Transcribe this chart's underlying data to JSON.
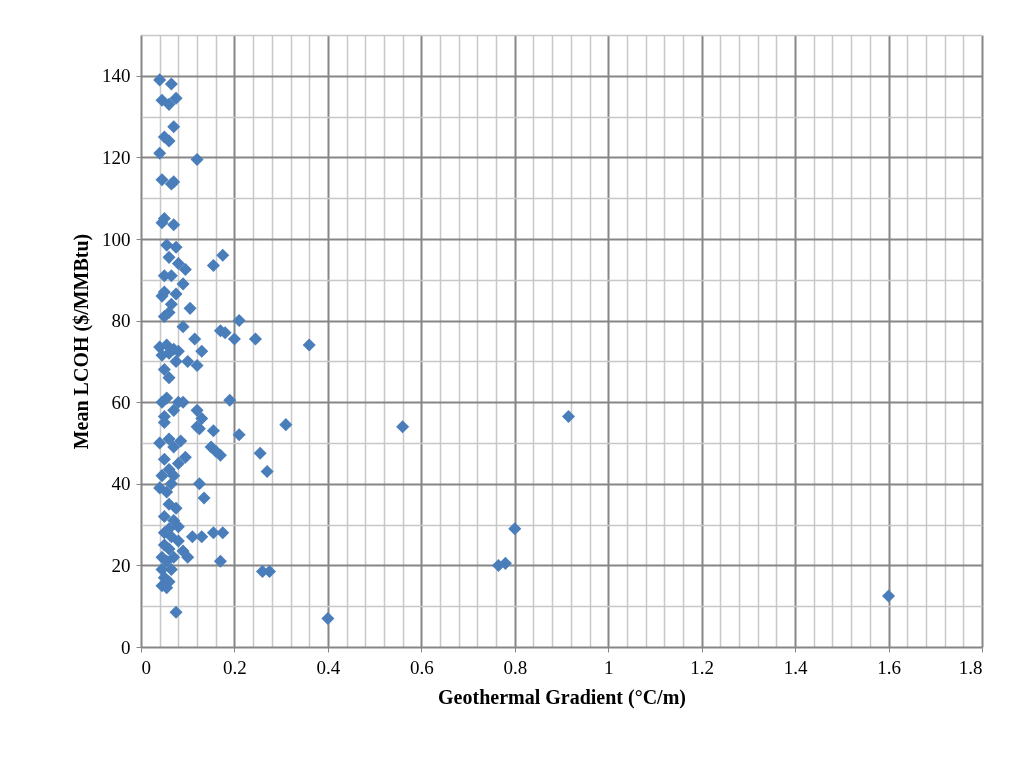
{
  "chart_data": {
    "type": "scatter",
    "xlabel": "Geothermal Gradient (°C/m)",
    "ylabel": "Mean LCOH ($/MMBtu)",
    "x": [
      0.04,
      0.065,
      0.045,
      0.075,
      0.06,
      0.07,
      0.05,
      0.06,
      0.04,
      0.12,
      0.045,
      0.07,
      0.065,
      0.045,
      0.05,
      0.07,
      0.055,
      0.075,
      0.06,
      0.08,
      0.095,
      0.05,
      0.065,
      0.155,
      0.175,
      0.09,
      0.05,
      0.045,
      0.075,
      0.065,
      0.105,
      0.05,
      0.06,
      0.21,
      0.09,
      0.17,
      0.18,
      0.2,
      0.245,
      0.36,
      0.04,
      0.055,
      0.07,
      0.115,
      0.045,
      0.06,
      0.08,
      0.13,
      0.1,
      0.12,
      0.05,
      0.075,
      0.06,
      0.055,
      0.045,
      0.08,
      0.09,
      0.19,
      0.07,
      0.05,
      0.12,
      0.13,
      0.12,
      0.125,
      0.155,
      0.31,
      0.56,
      0.915,
      0.05,
      0.21,
      0.06,
      0.085,
      0.04,
      0.07,
      0.15,
      0.16,
      0.17,
      0.255,
      0.095,
      0.05,
      0.08,
      0.06,
      0.27,
      0.045,
      0.07,
      0.125,
      0.04,
      0.055,
      0.065,
      0.135,
      0.06,
      0.075,
      0.05,
      0.07,
      0.06,
      0.08,
      0.8,
      0.05,
      0.11,
      0.13,
      0.155,
      0.175,
      0.065,
      0.05,
      0.08,
      0.06,
      0.09,
      0.045,
      0.07,
      0.1,
      0.055,
      0.17,
      0.045,
      0.065,
      0.765,
      0.78,
      0.26,
      0.275,
      0.05,
      0.06,
      0.045,
      0.055,
      1.6,
      0.075,
      0.4
    ],
    "values": [
      139,
      138,
      134,
      134.5,
      133,
      127.5,
      125,
      124,
      121,
      119.5,
      114.5,
      114,
      113.5,
      104,
      105,
      103.5,
      98.5,
      98,
      95.5,
      94,
      92.5,
      91,
      91,
      93.5,
      96,
      89,
      87,
      86,
      86.5,
      84,
      83,
      81,
      82,
      80,
      78.5,
      77.5,
      77,
      75.5,
      75.5,
      74,
      73.5,
      74,
      73,
      75.5,
      71.5,
      72,
      72.5,
      72.5,
      70,
      69,
      68,
      70,
      66,
      61,
      60,
      60,
      60,
      60.5,
      58,
      56.5,
      58,
      56,
      54,
      53.5,
      53,
      54.5,
      54,
      56.5,
      55,
      52,
      51,
      50.5,
      50,
      49,
      49,
      48,
      47,
      47.5,
      46.5,
      46,
      45,
      43.5,
      43,
      42,
      42,
      40,
      39,
      38,
      40,
      36.5,
      35,
      34,
      32,
      31,
      29,
      29.5,
      29,
      28,
      27,
      27,
      28,
      28,
      27,
      25,
      26,
      24,
      23.5,
      22,
      22,
      22,
      21,
      21,
      19,
      19,
      20,
      20.5,
      18.5,
      18.5,
      17,
      16,
      15,
      14.5,
      12.5,
      8.5,
      7
    ],
    "color": "#4a7ebb",
    "marker": "diamond",
    "grid": true,
    "xlim": [
      0,
      1.8
    ],
    "xticks": [
      0,
      {
        "value": 0.04,
        "label": null
      },
      {
        "value": 0.08,
        "label": null
      },
      {
        "value": 0.12,
        "label": null
      },
      {
        "value": 0.16,
        "label": null
      },
      0.2,
      {
        "value": 0.24,
        "label": null
      },
      {
        "value": 0.28,
        "label": null
      },
      {
        "value": 0.32,
        "label": null
      },
      {
        "value": 0.36,
        "label": null
      },
      0.4,
      {
        "value": 0.44,
        "label": null
      },
      {
        "value": 0.48,
        "label": null
      },
      {
        "value": 0.52,
        "label": null
      },
      {
        "value": 0.56,
        "label": null
      },
      0.6,
      {
        "value": 0.64,
        "label": null
      },
      {
        "value": 0.68,
        "label": null
      },
      {
        "value": 0.72,
        "label": null
      },
      {
        "value": 0.76,
        "label": null
      },
      0.8,
      {
        "value": 0.84,
        "label": null
      },
      {
        "value": 0.88,
        "label": null
      },
      {
        "value": 0.92,
        "label": null
      },
      {
        "value": 0.96,
        "label": null
      },
      1,
      {
        "value": 1.04,
        "label": null
      },
      {
        "value": 1.08,
        "label": null
      },
      {
        "value": 1.12,
        "label": null
      },
      {
        "value": 1.16,
        "label": null
      },
      1.2,
      {
        "value": 1.24,
        "label": null
      },
      {
        "value": 1.28,
        "label": null
      },
      {
        "value": 1.32,
        "label": null
      },
      {
        "value": 1.36,
        "label": null
      },
      1.4,
      {
        "value": 1.44,
        "label": null
      },
      {
        "value": 1.48,
        "label": null
      },
      {
        "value": 1.52,
        "label": null
      },
      {
        "value": 1.56,
        "label": null
      },
      1.6,
      {
        "value": 1.64,
        "label": null
      },
      {
        "value": 1.68,
        "label": null
      },
      {
        "value": 1.72,
        "label": null
      },
      {
        "value": 1.76,
        "label": null
      },
      1.8
    ],
    "ylim": [
      0,
      150
    ],
    "yticks": [
      0,
      {
        "value": 10,
        "label": null
      },
      20,
      {
        "value": 30,
        "label": null
      },
      40,
      {
        "value": 50,
        "label": null
      },
      60,
      {
        "value": 70,
        "label": null
      },
      80,
      {
        "value": 90,
        "label": null
      },
      100,
      {
        "value": 110,
        "label": null
      },
      120,
      {
        "value": 130,
        "label": null
      },
      140,
      {
        "value": 150,
        "label": null
      }
    ]
  }
}
